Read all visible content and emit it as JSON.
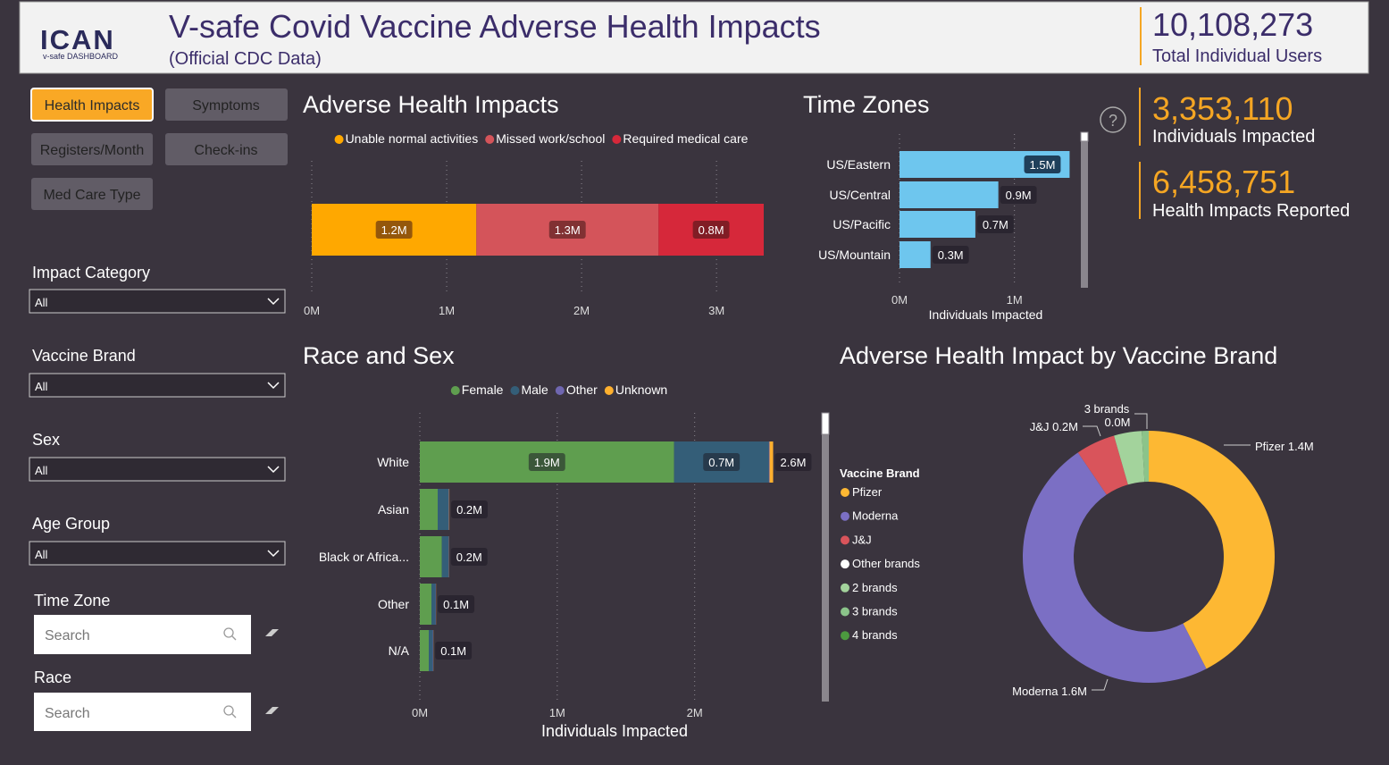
{
  "header": {
    "logo": "ICAN",
    "logo_sub": "v-safe DASHBOARD",
    "title": "V-safe Covid Vaccine Adverse Health Impacts",
    "subtitle": "(Official CDC Data)",
    "total_value": "10,108,273",
    "total_label": "Total Individual Users"
  },
  "nav": [
    "Health Impacts",
    "Symptoms",
    "Registers/Month",
    "Check-ins",
    "Med Care Type"
  ],
  "filters": [
    {
      "label": "Impact Category",
      "value": "All"
    },
    {
      "label": "Vaccine Brand",
      "value": "All"
    },
    {
      "label": "Sex",
      "value": "All"
    },
    {
      "label": "Age Group",
      "value": "All"
    }
  ],
  "searches": [
    {
      "label": "Time Zone",
      "placeholder": "Search"
    },
    {
      "label": "Race",
      "placeholder": "Search"
    }
  ],
  "kpis": [
    {
      "value": "3,353,110",
      "label": "Individuals Impacted"
    },
    {
      "value": "6,458,751",
      "label": "Health Impacts Reported"
    }
  ],
  "help": "?",
  "chart_data": [
    {
      "type": "stacked_bar_h",
      "title": "Adverse Health Impacts",
      "categories": [
        null
      ],
      "series": [
        {
          "name": "Unable normal activities",
          "color": "#ffa800",
          "values": [
            1220000
          ],
          "value_labels": [
            "1.2M"
          ]
        },
        {
          "name": "Missed work/school",
          "color": "#d4545a",
          "values": [
            1350000
          ],
          "value_labels": [
            "1.3M"
          ]
        },
        {
          "name": "Required medical care",
          "color": "#d6283a",
          "values": [
            780000
          ],
          "value_labels": [
            "0.8M"
          ]
        }
      ],
      "xlim": [
        0,
        3350000
      ],
      "xticks": [
        {
          "value": 0,
          "label": "0M"
        },
        {
          "value": 1000000,
          "label": "1M"
        },
        {
          "value": 2000000,
          "label": "2M"
        },
        {
          "value": 3000000,
          "label": "3M"
        }
      ],
      "grid": true
    },
    {
      "type": "bar_h",
      "title": "Time Zones",
      "categories": [
        "US/Eastern",
        "US/Central",
        "US/Pacific",
        "US/Mountain"
      ],
      "values": [
        1480000,
        860000,
        660000,
        270000
      ],
      "value_labels": [
        "1.5M",
        "0.9M",
        "0.7M",
        "0.3M"
      ],
      "color": "#6ec6ee",
      "xlabel": "Individuals Impacted",
      "xlim": [
        0,
        1500000
      ],
      "xticks": [
        {
          "value": 0,
          "label": "0M"
        },
        {
          "value": 1000000,
          "label": "1M"
        }
      ],
      "grid": true
    },
    {
      "type": "stacked_bar_h",
      "title": "Race and Sex",
      "categories": [
        "White",
        "Asian",
        "Black or Africa...",
        "Other",
        "N/A"
      ],
      "series": [
        {
          "name": "Female",
          "color": "#5f9e4f",
          "values": [
            1850000,
            130000,
            160000,
            85000,
            65000
          ],
          "value_labels": [
            "1.9M",
            null,
            null,
            null,
            null
          ]
        },
        {
          "name": "Male",
          "color": "#345e78",
          "values": [
            690000,
            80000,
            50000,
            30000,
            30000
          ],
          "value_labels": [
            "0.7M",
            null,
            null,
            null,
            null
          ]
        },
        {
          "name": "Other",
          "color": "#6f66b0",
          "values": [
            5000,
            3000,
            2000,
            2000,
            3000
          ]
        },
        {
          "name": "Unknown",
          "color": "#ffb02e",
          "values": [
            26000,
            2000,
            1000,
            1000,
            1000
          ]
        }
      ],
      "total_labels": [
        "2.6M",
        "0.2M",
        "0.2M",
        "0.1M",
        "0.1M"
      ],
      "xlabel": "Individuals Impacted",
      "xlim": [
        0,
        2600000
      ],
      "xticks": [
        {
          "value": 0,
          "label": "0M"
        },
        {
          "value": 1000000,
          "label": "1M"
        },
        {
          "value": 2000000,
          "label": "2M"
        }
      ],
      "grid": true
    },
    {
      "type": "donut",
      "title": "Adverse Health Impact by Vaccine Brand",
      "legend_title": "Vaccine Brand",
      "categories": [
        "Pfizer",
        "Moderna",
        "J&J",
        "Other brands",
        "2 brands",
        "3 brands",
        "4 brands"
      ],
      "values": [
        1430000,
        1620000,
        170000,
        0,
        120000,
        30000,
        0
      ],
      "value_labels": [
        "1.4M",
        "1.6M",
        "0.2M",
        null,
        null,
        "0.0M",
        null
      ],
      "colors": [
        "#fdb833",
        "#7b6fc4",
        "#d9545b",
        "#ffffff",
        "#a3d39c",
        "#8bc48a",
        "#4c9a3f"
      ]
    }
  ]
}
